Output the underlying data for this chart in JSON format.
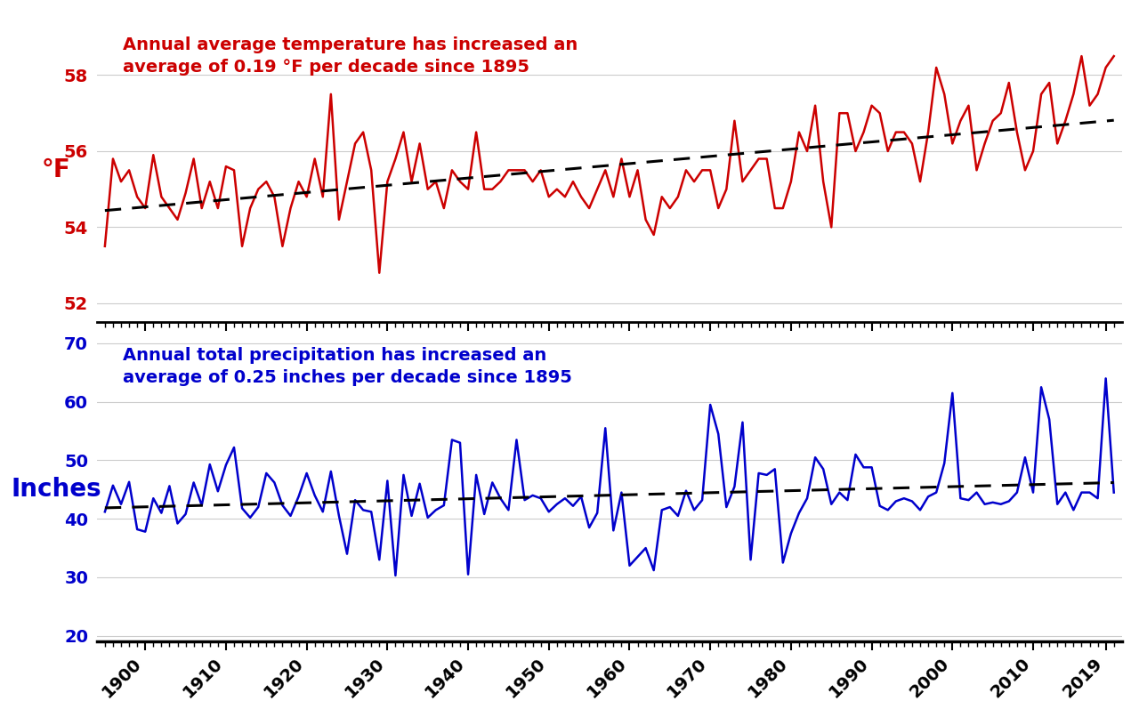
{
  "years": [
    1895,
    1896,
    1897,
    1898,
    1899,
    1900,
    1901,
    1902,
    1903,
    1904,
    1905,
    1906,
    1907,
    1908,
    1909,
    1910,
    1911,
    1912,
    1913,
    1914,
    1915,
    1916,
    1917,
    1918,
    1919,
    1920,
    1921,
    1922,
    1923,
    1924,
    1925,
    1926,
    1927,
    1928,
    1929,
    1930,
    1931,
    1932,
    1933,
    1934,
    1935,
    1936,
    1937,
    1938,
    1939,
    1940,
    1941,
    1942,
    1943,
    1944,
    1945,
    1946,
    1947,
    1948,
    1949,
    1950,
    1951,
    1952,
    1953,
    1954,
    1955,
    1956,
    1957,
    1958,
    1959,
    1960,
    1961,
    1962,
    1963,
    1964,
    1965,
    1966,
    1967,
    1968,
    1969,
    1970,
    1971,
    1972,
    1973,
    1974,
    1975,
    1976,
    1977,
    1978,
    1979,
    1980,
    1981,
    1982,
    1983,
    1984,
    1985,
    1986,
    1987,
    1988,
    1989,
    1990,
    1991,
    1992,
    1993,
    1994,
    1995,
    1996,
    1997,
    1998,
    1999,
    2000,
    2001,
    2002,
    2003,
    2004,
    2005,
    2006,
    2007,
    2008,
    2009,
    2010,
    2011,
    2012,
    2013,
    2014,
    2015,
    2016,
    2017,
    2018,
    2019,
    2020
  ],
  "temp": [
    53.5,
    55.8,
    55.2,
    55.5,
    54.8,
    54.5,
    55.9,
    54.8,
    54.5,
    54.2,
    54.9,
    55.8,
    54.5,
    55.2,
    54.5,
    55.6,
    55.5,
    53.5,
    54.5,
    55.0,
    55.2,
    54.8,
    53.5,
    54.5,
    55.2,
    54.8,
    55.8,
    54.8,
    57.5,
    54.2,
    55.2,
    56.2,
    56.5,
    55.5,
    52.8,
    55.2,
    55.8,
    56.5,
    55.2,
    56.2,
    55.0,
    55.2,
    54.5,
    55.5,
    55.2,
    55.0,
    56.5,
    55.0,
    55.0,
    55.2,
    55.5,
    55.5,
    55.5,
    55.2,
    55.5,
    54.8,
    55.0,
    54.8,
    55.2,
    54.8,
    54.5,
    55.0,
    55.5,
    54.8,
    55.8,
    54.8,
    55.5,
    54.2,
    53.8,
    54.8,
    54.5,
    54.8,
    55.5,
    55.2,
    55.5,
    55.5,
    54.5,
    55.0,
    56.8,
    55.2,
    55.5,
    55.8,
    55.8,
    54.5,
    54.5,
    55.2,
    56.5,
    56.0,
    57.2,
    55.2,
    54.0,
    57.0,
    57.0,
    56.0,
    56.5,
    57.2,
    57.0,
    56.0,
    56.5,
    56.5,
    56.2,
    55.2,
    56.5,
    58.2,
    57.5,
    56.2,
    56.8,
    57.2,
    55.5,
    56.2,
    56.8,
    57.0,
    57.8,
    56.5,
    55.5,
    56.0,
    57.5,
    57.8,
    56.2,
    56.8,
    57.5,
    58.5,
    57.2,
    57.5,
    58.2,
    58.5
  ],
  "precip": [
    41.2,
    45.7,
    42.5,
    46.3,
    38.2,
    37.8,
    43.5,
    41.0,
    45.6,
    39.2,
    40.8,
    46.2,
    42.3,
    49.3,
    44.7,
    49.2,
    52.2,
    41.8,
    40.2,
    42.0,
    47.8,
    46.2,
    42.3,
    40.5,
    43.8,
    47.8,
    44.0,
    41.2,
    48.1,
    40.5,
    34.0,
    43.2,
    41.5,
    41.2,
    33.0,
    46.5,
    30.3,
    47.5,
    40.5,
    46.0,
    40.2,
    41.5,
    42.3,
    53.5,
    53.0,
    30.5,
    47.5,
    40.8,
    46.2,
    43.5,
    41.5,
    53.5,
    43.2,
    44.0,
    43.5,
    41.2,
    42.5,
    43.5,
    42.2,
    43.8,
    38.5,
    41.0,
    55.5,
    38.0,
    44.5,
    32.0,
    33.5,
    35.0,
    31.2,
    41.5,
    42.0,
    40.5,
    44.8,
    41.5,
    43.2,
    59.5,
    54.5,
    42.0,
    45.5,
    56.5,
    33.0,
    47.8,
    47.5,
    48.5,
    32.5,
    37.5,
    41.0,
    43.5,
    50.5,
    48.5,
    42.5,
    44.5,
    43.2,
    51.0,
    48.8,
    48.8,
    42.2,
    41.5,
    43.0,
    43.5,
    43.0,
    41.5,
    43.8,
    44.5,
    49.5,
    61.5,
    43.5,
    43.2,
    44.5,
    42.5,
    42.8,
    42.5,
    43.0,
    44.5,
    50.5,
    44.5,
    62.5,
    57.0,
    42.5,
    44.5,
    41.5,
    44.5,
    44.5,
    43.5,
    64.0,
    44.5
  ],
  "temp_color": "#CC0000",
  "precip_color": "#0000CC",
  "trend_color": "black",
  "trend_linestyle": "--",
  "temp_ylabel": "°F",
  "precip_ylabel": "Inches",
  "temp_ylim": [
    51.5,
    59.5
  ],
  "precip_ylim": [
    19.0,
    71.0
  ],
  "temp_yticks": [
    52,
    54,
    56,
    58
  ],
  "precip_yticks": [
    20,
    30,
    40,
    50,
    60,
    70
  ],
  "temp_annotation": "Annual average temperature has increased an\naverage of 0.19 °F per decade since 1895",
  "precip_annotation": "Annual total precipitation has increased an\naverage of 0.25 inches per decade since 1895",
  "xtick_major": [
    1900,
    1910,
    1920,
    1930,
    1940,
    1950,
    1960,
    1970,
    1980,
    1990,
    2000,
    2010,
    2019
  ],
  "xtick_minor": [
    1895,
    1896,
    1897,
    1898,
    1899,
    1901,
    1902,
    1903,
    1904,
    1905,
    1906,
    1907,
    1908,
    1909,
    1911,
    1912,
    1913,
    1914,
    1915,
    1916,
    1917,
    1918,
    1919,
    1921,
    1922,
    1923,
    1924,
    1925,
    1926,
    1927,
    1928,
    1929,
    1931,
    1932,
    1933,
    1934,
    1935,
    1936,
    1937,
    1938,
    1939,
    1941,
    1942,
    1943,
    1944,
    1945,
    1946,
    1947,
    1948,
    1949,
    1951,
    1952,
    1953,
    1954,
    1955,
    1956,
    1957,
    1958,
    1959,
    1961,
    1962,
    1963,
    1964,
    1965,
    1966,
    1967,
    1968,
    1969,
    1971,
    1972,
    1973,
    1974,
    1975,
    1976,
    1977,
    1978,
    1979,
    1981,
    1982,
    1983,
    1984,
    1985,
    1986,
    1987,
    1988,
    1989,
    1991,
    1992,
    1993,
    1994,
    1995,
    1996,
    1997,
    1998,
    1999,
    2001,
    2002,
    2003,
    2004,
    2005,
    2006,
    2007,
    2008,
    2009,
    2011,
    2012,
    2013,
    2014,
    2015,
    2016,
    2017,
    2018,
    2020
  ],
  "background_color": "#ffffff",
  "grid_color": "#cccccc",
  "line_width": 1.8,
  "trend_linewidth": 2.2,
  "annotation_fontsize": 14,
  "ylabel_fontsize": 20,
  "tick_fontsize": 14
}
